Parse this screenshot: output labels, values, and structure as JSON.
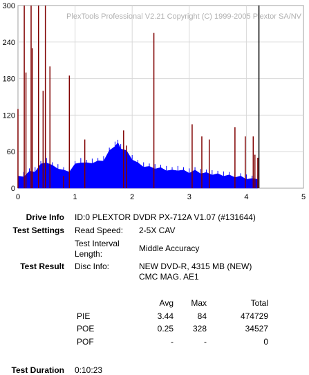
{
  "chart_data": {
    "type": "bar",
    "watermark": "PlexTools Professional V2.21 Copyright (C) 1999-2005 Plextor SA/NV",
    "xlim": [
      0,
      5
    ],
    "ylim": [
      0,
      300
    ],
    "x_ticks": [
      "0",
      "1",
      "2",
      "3",
      "4",
      "5"
    ],
    "y_ticks": [
      "0",
      "60",
      "120",
      "180",
      "240",
      "300"
    ],
    "data_end_x": 4.22,
    "grid": true,
    "series": [
      {
        "kind": "PIE",
        "color": "#0000ff",
        "x": [
          0.0,
          0.1,
          0.2,
          0.3,
          0.4,
          0.5,
          0.6,
          0.7,
          0.8,
          0.9,
          1.0,
          1.1,
          1.2,
          1.3,
          1.4,
          1.5,
          1.6,
          1.7,
          1.75,
          1.8,
          1.9,
          2.0,
          2.1,
          2.2,
          2.3,
          2.4,
          2.5,
          2.6,
          2.7,
          2.8,
          2.9,
          3.0,
          3.1,
          3.2,
          3.3,
          3.4,
          3.5,
          3.6,
          3.7,
          3.8,
          3.9,
          4.0,
          4.1,
          4.2
        ],
        "values": [
          20,
          22,
          28,
          30,
          40,
          45,
          38,
          35,
          30,
          30,
          40,
          45,
          42,
          44,
          45,
          48,
          62,
          72,
          75,
          68,
          62,
          50,
          42,
          38,
          36,
          35,
          34,
          32,
          30,
          32,
          30,
          28,
          30,
          27,
          26,
          25,
          24,
          23,
          22,
          21,
          20,
          18,
          16,
          18
        ]
      },
      {
        "kind": "POE",
        "color": "#800000",
        "x": [
          0.0,
          0.11,
          0.14,
          0.23,
          0.25,
          0.36,
          0.44,
          0.48,
          0.56,
          0.8,
          0.9,
          1.17,
          1.85,
          1.9,
          2.38,
          3.05,
          3.22,
          3.35,
          3.8,
          3.98,
          4.12,
          4.15,
          4.2
        ],
        "values": [
          130,
          300,
          190,
          300,
          230,
          300,
          160,
          300,
          200,
          20,
          185,
          80,
          95,
          70,
          255,
          105,
          85,
          80,
          100,
          85,
          85,
          55,
          50
        ]
      }
    ]
  },
  "info": {
    "drive_info_label": "Drive Info",
    "drive_info_value": "ID:0 PLEXTOR DVDR PX-712A V1.07 (#131644)",
    "test_settings_label": "Test Settings",
    "read_speed_label": "Read Speed:",
    "read_speed_value": "2-5X CAV",
    "interval_label_1": "Test Interval",
    "interval_label_2": "Length:",
    "interval_value": "Middle Accuracy",
    "test_result_label": "Test Result",
    "disc_info_label": "Disc Info:",
    "disc_info_value_1": "NEW DVD-R, 4315 MB (NEW)",
    "disc_info_value_2": "CMC MAG. AE1",
    "duration_label": "Test Duration",
    "duration_value": "0:10:23"
  },
  "stats": {
    "headers": {
      "avg": "Avg",
      "max": "Max",
      "total": "Total"
    },
    "rows": [
      {
        "name": "PIE",
        "avg": "3.44",
        "max": "84",
        "total": "474729"
      },
      {
        "name": "POE",
        "avg": "0.25",
        "max": "328",
        "total": "34527"
      },
      {
        "name": "POF",
        "avg": "-",
        "max": "-",
        "total": "0"
      }
    ]
  }
}
